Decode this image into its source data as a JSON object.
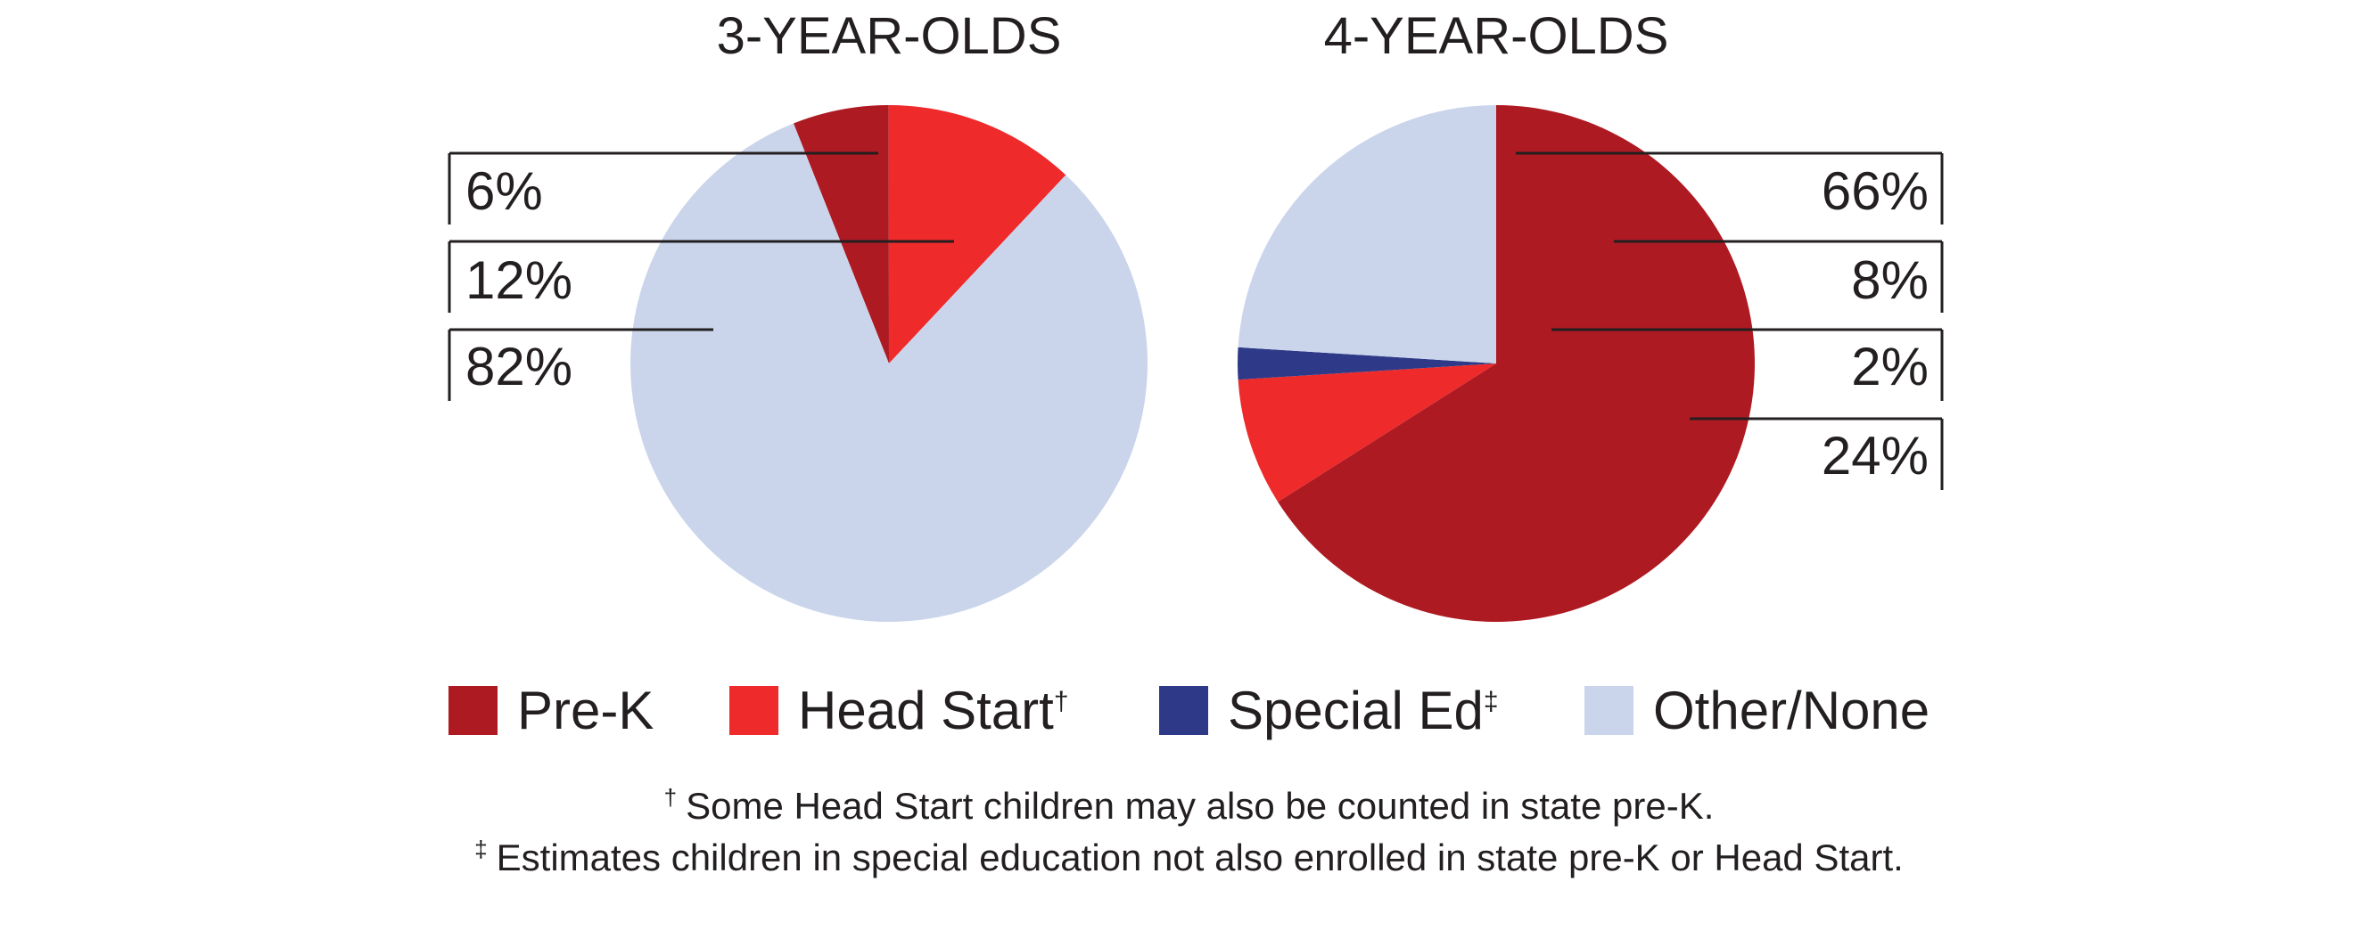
{
  "chart_data": [
    {
      "type": "pie",
      "title": "3-YEAR-OLDS",
      "categories": [
        "Pre-K",
        "Head Start",
        "Special Ed",
        "Other/None"
      ],
      "values": [
        6,
        12,
        0,
        82
      ],
      "labels": [
        "6%",
        "12%",
        "82%"
      ]
    },
    {
      "type": "pie",
      "title": "4-YEAR-OLDS",
      "categories": [
        "Pre-K",
        "Head Start",
        "Special Ed",
        "Other/None"
      ],
      "values": [
        66,
        8,
        2,
        24
      ],
      "labels": [
        "66%",
        "8%",
        "2%",
        "24%"
      ]
    }
  ],
  "legend": [
    {
      "label": "Pre-K",
      "mark": "",
      "color": "#ae1a22"
    },
    {
      "label": "Head Start",
      "mark": "†",
      "color": "#ee2a2b"
    },
    {
      "label": "Special Ed",
      "mark": "‡",
      "color": "#2e3a87"
    },
    {
      "label": "Other/None",
      "mark": "",
      "color": "#cad5eb"
    }
  ],
  "footnotes": [
    {
      "mark": "†",
      "text": "Some Head Start children may also be counted in state pre-K."
    },
    {
      "mark": "‡",
      "text": "Estimates children in special education not also enrolled in state pre-K or Head Start."
    }
  ]
}
